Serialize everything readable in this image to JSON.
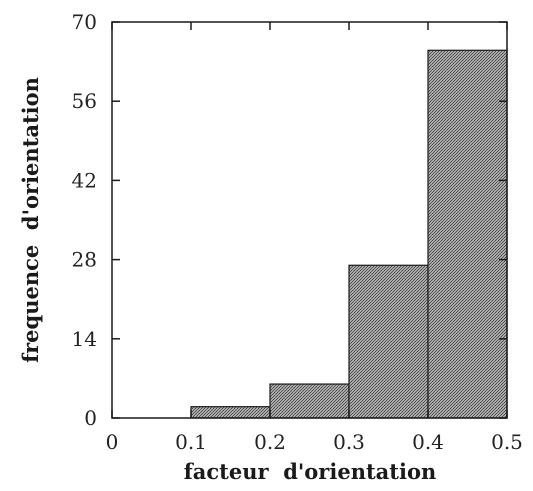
{
  "colors": {
    "bar_fill": "#8f8f8f",
    "bar_stroke": "#1a1a1a",
    "axis": "#1a1a1a",
    "background": "#ffffff"
  },
  "chart_data": {
    "type": "bar",
    "histogram": true,
    "bins": [
      {
        "start": 0.0,
        "end": 0.1,
        "value": 0
      },
      {
        "start": 0.1,
        "end": 0.2,
        "value": 2
      },
      {
        "start": 0.2,
        "end": 0.3,
        "value": 6
      },
      {
        "start": 0.3,
        "end": 0.4,
        "value": 27
      },
      {
        "start": 0.4,
        "end": 0.5,
        "value": 65
      }
    ],
    "xlabel": "facteur  d'orientation",
    "ylabel": "frequence  d'orientation",
    "xlim": [
      0,
      0.5
    ],
    "ylim": [
      0,
      70
    ],
    "xticks": [
      0,
      0.1,
      0.2,
      0.3,
      0.4,
      0.5
    ],
    "xtick_labels": [
      "0",
      "0.1",
      "0.2",
      "0.3",
      "0.4",
      "0.5"
    ],
    "yticks": [
      0,
      14,
      28,
      42,
      56,
      70
    ],
    "ytick_labels": [
      "0",
      "14",
      "28",
      "42",
      "56",
      "70"
    ],
    "grid": false,
    "legend": "none"
  }
}
